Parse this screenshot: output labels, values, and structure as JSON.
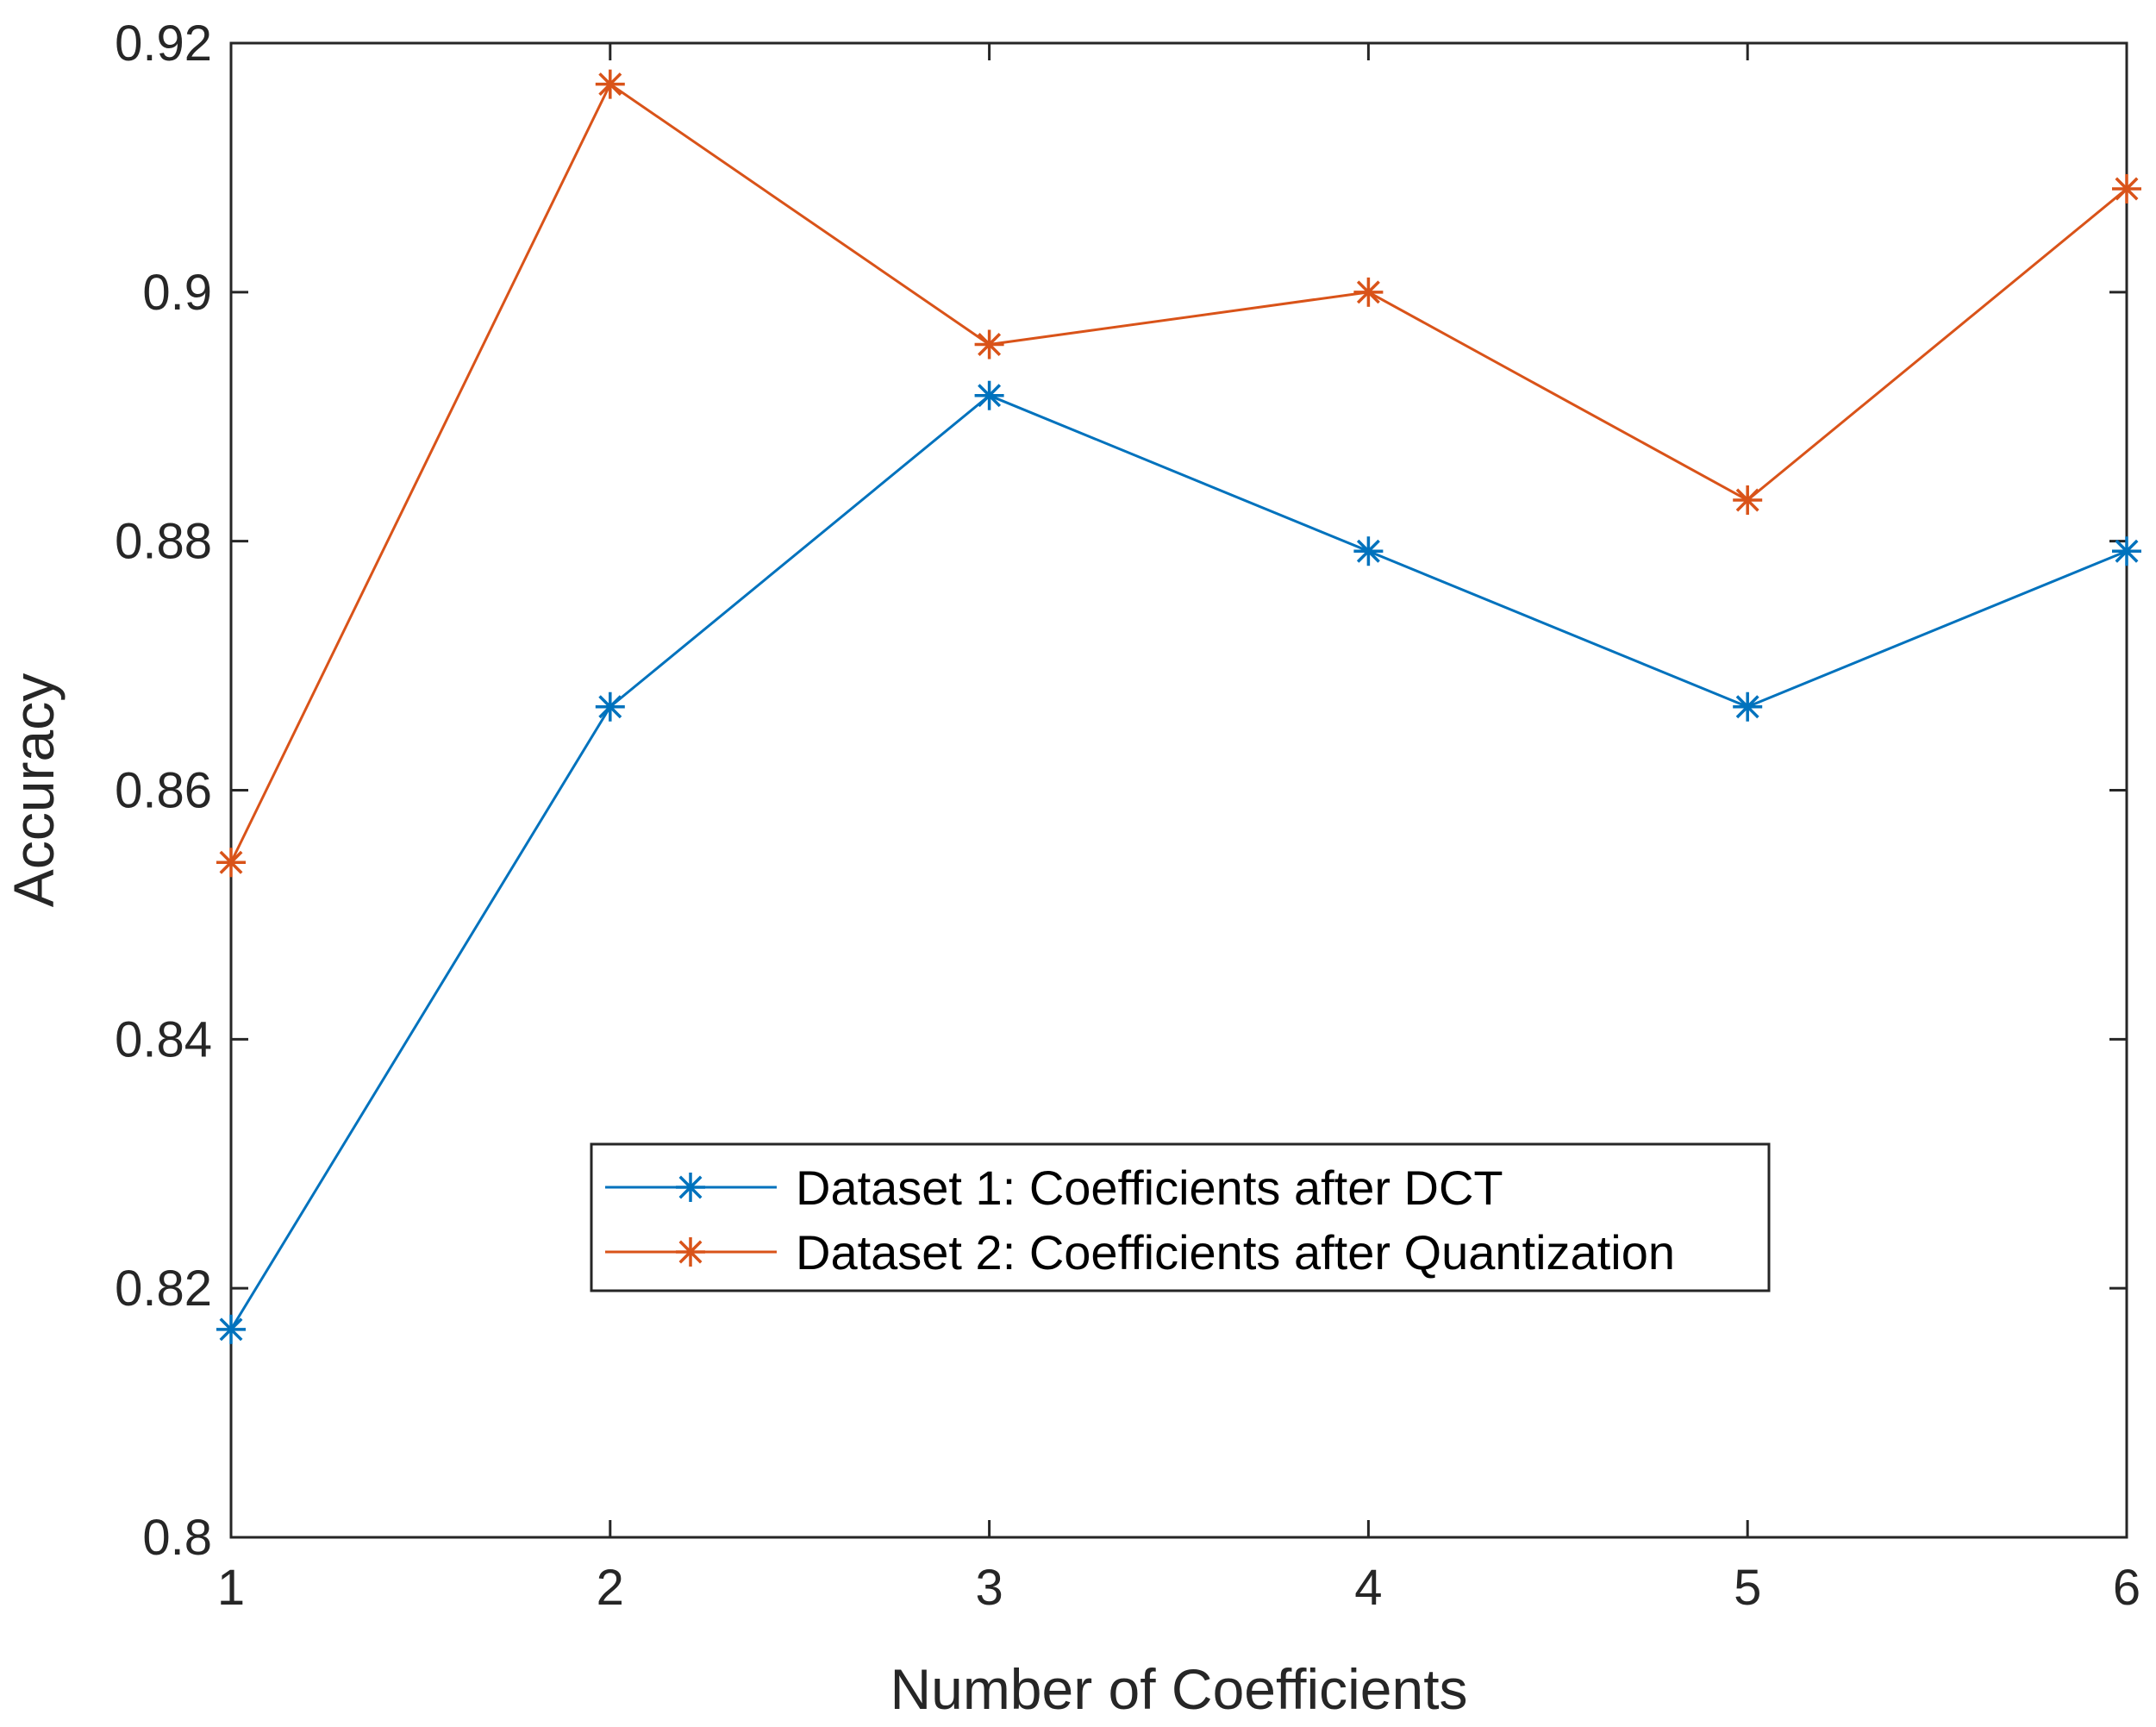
{
  "chart_data": {
    "type": "line",
    "title": "",
    "xlabel": "Number of Coefficients",
    "ylabel": "Accuracy",
    "x": [
      1,
      2,
      3,
      4,
      5,
      6
    ],
    "xlim": [
      1,
      6
    ],
    "ylim": [
      0.8,
      0.92
    ],
    "xticks": [
      1,
      2,
      3,
      4,
      5,
      6
    ],
    "xtick_labels": [
      "1",
      "2",
      "3",
      "4",
      "5",
      "6"
    ],
    "yticks": [
      0.8,
      0.82,
      0.84,
      0.86,
      0.88,
      0.9,
      0.92
    ],
    "ytick_labels": [
      "0.8",
      "0.82",
      "0.84",
      "0.86",
      "0.88",
      "0.9",
      "0.92"
    ],
    "grid": false,
    "legend_position": "lower-center",
    "series": [
      {
        "name": "Dataset 1: Coefficients after DCT",
        "color": "#0072BD",
        "marker": "asterisk",
        "values": [
          0.8167,
          0.8667,
          0.8917,
          0.8792,
          0.8667,
          0.8792
        ]
      },
      {
        "name": "Dataset 2: Coefficients after Quantization",
        "color": "#D95319",
        "marker": "asterisk",
        "values": [
          0.8542,
          0.9167,
          0.8958,
          0.9,
          0.8833,
          0.9083
        ]
      }
    ]
  }
}
